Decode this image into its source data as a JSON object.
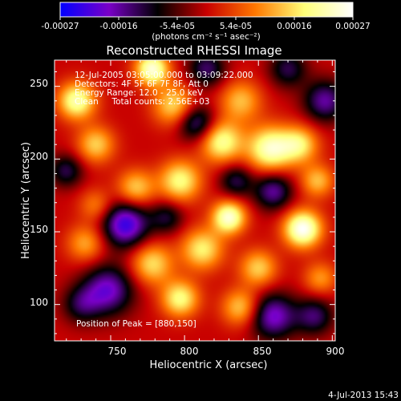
{
  "colorbar": {
    "ticks": [
      "-0.00027",
      "-0.00016",
      "-5.4e-05",
      "5.4e-05",
      "0.00016",
      "0.00027"
    ],
    "unit_label": "(photons cm⁻² s⁻¹ asec⁻²)",
    "range": [
      -0.00027,
      0.00027
    ],
    "colors": [
      "#0000ff",
      "#7a00c8",
      "#000000",
      "#c80000",
      "#ff7800",
      "#ffff78",
      "#ffffff"
    ]
  },
  "chart_data": {
    "type": "heatmap",
    "title": "Reconstructed RHESSI Image",
    "xlabel": "Heliocentric X (arcsec)",
    "ylabel": "Heliocentric Y (arcsec)",
    "xlim": [
      712,
      902
    ],
    "ylim": [
      75,
      268
    ],
    "x_ticks": [
      750,
      800,
      850,
      900
    ],
    "y_ticks": [
      100,
      150,
      200,
      250
    ],
    "annotations": [
      "12-Jul-2005 03:05:00.000 to 03:09:22.000",
      "Detectors: 4F 5F 6F 7F 8F, Att 0",
      "Energy Range: 12.0 - 25.0 keV",
      "Clean     Total counts: 2.56E+03"
    ],
    "peak_label": "Position of Peak = [880,150]",
    "peak": [
      880,
      150
    ],
    "blobs": [
      {
        "x": 880,
        "y": 152,
        "v": 1.0,
        "s": 9
      },
      {
        "x": 830,
        "y": 160,
        "v": 0.9,
        "s": 8
      },
      {
        "x": 858,
        "y": 207,
        "v": 0.85,
        "s": 11
      },
      {
        "x": 825,
        "y": 212,
        "v": 0.75,
        "s": 10
      },
      {
        "x": 778,
        "y": 262,
        "v": 0.9,
        "s": 8
      },
      {
        "x": 727,
        "y": 240,
        "v": 0.8,
        "s": 9
      },
      {
        "x": 793,
        "y": 237,
        "v": 0.6,
        "s": 10
      },
      {
        "x": 838,
        "y": 240,
        "v": 0.5,
        "s": 10
      },
      {
        "x": 878,
        "y": 210,
        "v": 0.6,
        "s": 9
      },
      {
        "x": 740,
        "y": 210,
        "v": 0.55,
        "s": 9
      },
      {
        "x": 797,
        "y": 185,
        "v": 0.7,
        "s": 10
      },
      {
        "x": 767,
        "y": 180,
        "v": 0.55,
        "s": 9
      },
      {
        "x": 890,
        "y": 185,
        "v": 0.5,
        "s": 8
      },
      {
        "x": 812,
        "y": 138,
        "v": 0.65,
        "s": 10
      },
      {
        "x": 778,
        "y": 128,
        "v": 0.6,
        "s": 10
      },
      {
        "x": 850,
        "y": 125,
        "v": 0.55,
        "s": 9
      },
      {
        "x": 733,
        "y": 142,
        "v": 0.45,
        "s": 9
      },
      {
        "x": 797,
        "y": 104,
        "v": 0.7,
        "s": 9
      },
      {
        "x": 838,
        "y": 98,
        "v": 0.55,
        "s": 9
      },
      {
        "x": 892,
        "y": 118,
        "v": 0.4,
        "s": 8
      },
      {
        "x": 740,
        "y": 168,
        "v": 0.35,
        "s": 8
      },
      {
        "x": 760,
        "y": 155,
        "v": -0.85,
        "s": 11
      },
      {
        "x": 748,
        "y": 110,
        "v": -0.7,
        "s": 12
      },
      {
        "x": 808,
        "y": 225,
        "v": -0.6,
        "s": 9
      },
      {
        "x": 860,
        "y": 178,
        "v": -0.6,
        "s": 9
      },
      {
        "x": 860,
        "y": 92,
        "v": -0.7,
        "s": 11
      },
      {
        "x": 895,
        "y": 240,
        "v": -0.6,
        "s": 10
      },
      {
        "x": 730,
        "y": 100,
        "v": -0.4,
        "s": 9
      },
      {
        "x": 815,
        "y": 262,
        "v": -0.5,
        "s": 9
      },
      {
        "x": 888,
        "y": 92,
        "v": -0.5,
        "s": 9
      },
      {
        "x": 835,
        "y": 185,
        "v": -0.45,
        "s": 8
      },
      {
        "x": 720,
        "y": 192,
        "v": -0.45,
        "s": 8
      },
      {
        "x": 788,
        "y": 160,
        "v": -0.4,
        "s": 8
      },
      {
        "x": 870,
        "y": 262,
        "v": -0.45,
        "s": 9
      }
    ]
  },
  "footer": {
    "timestamp": "4-Jul-2013 15:43"
  }
}
